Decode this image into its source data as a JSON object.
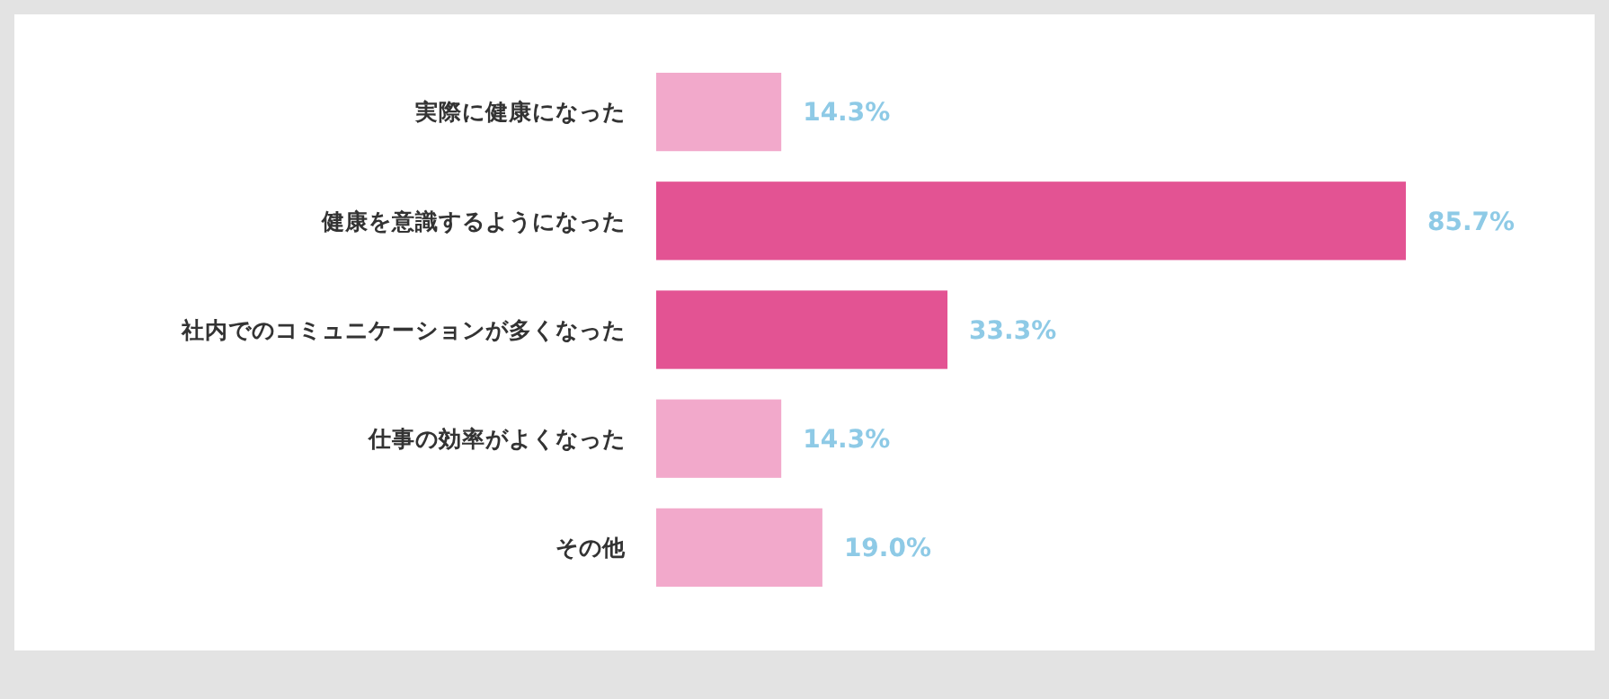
{
  "chart_data": {
    "type": "bar",
    "orientation": "horizontal",
    "categories": [
      "実際に健康になった",
      "健康を意識するようになった",
      "社内でのコミュニケーションが多くなった",
      "仕事の効率がよくなった",
      "その他"
    ],
    "values": [
      14.3,
      85.7,
      33.3,
      14.3,
      19.0
    ],
    "colors": [
      "#f2a9cb",
      "#e35393",
      "#e35393",
      "#f2a9cb",
      "#f2a9cb"
    ],
    "value_labels": [
      "14.3%",
      "85.7%",
      "33.3%",
      "14.3%",
      "19.0%"
    ],
    "grid": false
  }
}
